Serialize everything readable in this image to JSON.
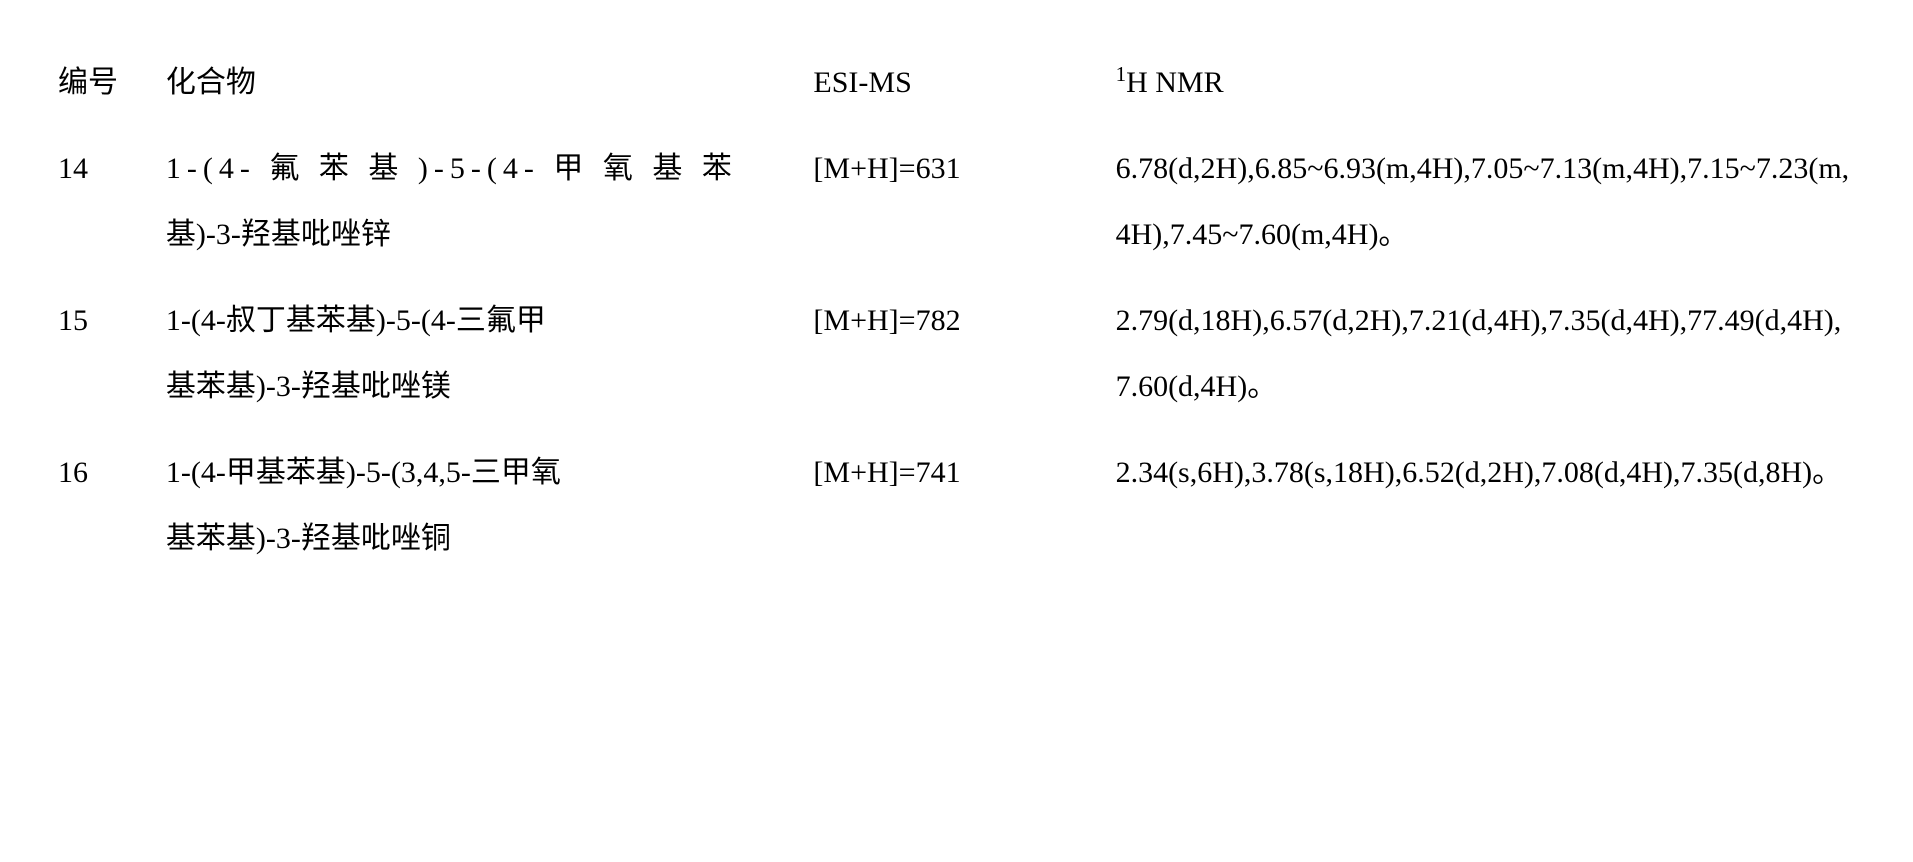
{
  "headers": {
    "num": "编号",
    "compound": "化合物",
    "esims": "ESI-MS",
    "nmr_prefix": "1",
    "nmr_suffix": "H NMR"
  },
  "rows": [
    {
      "num": "14",
      "compound_line1": "1-(4- 氟 苯 基 )-5-(4- 甲 氧 基 苯",
      "compound_line2": "基)-3-羟基吡唑锌",
      "esims": "[M+H]=631",
      "nmr": "6.78(d,2H),6.85~6.93(m,4H),7.05~7.13(m,4H),7.15~7.23(m,4H),7.45~7.60(m,4H)。"
    },
    {
      "num": "15",
      "compound_line1": "1-(4-叔丁基苯基)-5-(4-三氟甲",
      "compound_line2": "基苯基)-3-羟基吡唑镁",
      "esims": "[M+H]=782",
      "nmr": "2.79(d,18H),6.57(d,2H),7.21(d,4H),7.35(d,4H),77.49(d,4H),7.60(d,4H)。"
    },
    {
      "num": "16",
      "compound_line1": "1-(4-甲基苯基)-5-(3,4,5-三甲氧",
      "compound_line2": "基苯基)-3-羟基吡唑铜",
      "esims": "[M+H]=741",
      "nmr": "2.34(s,6H),3.78(s,18H),6.52(d,2H),7.08(d,4H),7.35(d,8H)。"
    }
  ],
  "styling": {
    "background_color": "#ffffff",
    "text_color": "#000000",
    "font_family": "SimSun, Times New Roman, serif",
    "base_fontsize": 30,
    "line_height": 2.2,
    "col_widths": {
      "num": 100,
      "compound": 600,
      "esims": 280,
      "nmr": 700
    }
  }
}
